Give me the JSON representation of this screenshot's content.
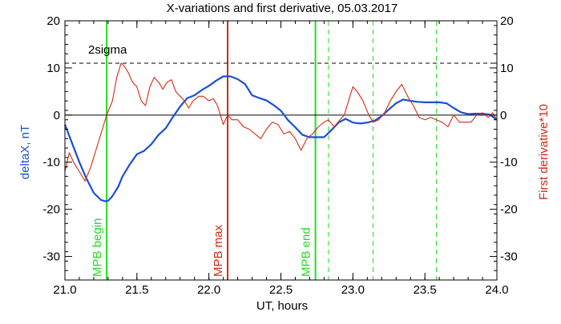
{
  "chart_data": {
    "type": "line",
    "title": "X-variations and first derivative, 05.03.2017",
    "xlabel": "UT, hours",
    "ylabel_left": "deltaX, nT",
    "ylabel_right": "First derivative*10",
    "xlim": [
      21.0,
      24.0
    ],
    "ylim": [
      -35,
      20
    ],
    "x_ticks": [
      21.0,
      21.5,
      22.0,
      22.5,
      23.0,
      23.5,
      24.0
    ],
    "x_tick_labels": [
      "21.0",
      "21.5",
      "22.0",
      "22.5",
      "23.0",
      "23.5",
      "24.0"
    ],
    "y_ticks": [
      -30,
      -20,
      -10,
      0,
      10,
      20
    ],
    "y_tick_labels": [
      "-30",
      "-20",
      "-10",
      "0",
      "10",
      "20"
    ],
    "colors": {
      "deltaX": "#1a4fd8",
      "derivative": "#d42a14",
      "mpb_begin": "#22dd22",
      "mpb_max": "#d42a14",
      "mpb_end": "#22dd22",
      "dashed_markers": "#22dd22",
      "reference": "#000000"
    },
    "reference_lines": [
      {
        "label": "2sigma",
        "y": 11,
        "style": "dashed"
      },
      {
        "label": "",
        "y": 0,
        "style": "solid"
      }
    ],
    "vertical_markers": [
      {
        "label": "MPB begin",
        "x": 21.29,
        "color": "#22dd22",
        "style": "solid"
      },
      {
        "label": "MPB max",
        "x": 22.13,
        "color": "#d42a14",
        "style": "solid"
      },
      {
        "label": "MPB end",
        "x": 22.74,
        "color": "#22dd22",
        "style": "solid"
      },
      {
        "label": "",
        "x": 22.83,
        "color": "#22dd22",
        "style": "dashed"
      },
      {
        "label": "",
        "x": 23.14,
        "color": "#22dd22",
        "style": "dashed"
      },
      {
        "label": "",
        "x": 23.58,
        "color": "#22dd22",
        "style": "dashed"
      }
    ],
    "series": [
      {
        "id": "deltaX",
        "axis": "left",
        "color": "#1a4fd8",
        "x": [
          21.0,
          21.05,
          21.1,
          21.15,
          21.2,
          21.25,
          21.28,
          21.3,
          21.33,
          21.37,
          21.4,
          21.45,
          21.5,
          21.55,
          21.6,
          21.65,
          21.7,
          21.75,
          21.8,
          21.85,
          21.9,
          21.95,
          22.0,
          22.05,
          22.1,
          22.15,
          22.2,
          22.25,
          22.3,
          22.35,
          22.4,
          22.45,
          22.5,
          22.55,
          22.6,
          22.65,
          22.7,
          22.75,
          22.8,
          22.85,
          22.9,
          22.95,
          23.0,
          23.05,
          23.1,
          23.15,
          23.2,
          23.25,
          23.3,
          23.35,
          23.4,
          23.45,
          23.5,
          23.55,
          23.6,
          23.65,
          23.7,
          23.75,
          23.8,
          23.85,
          23.9,
          23.95,
          24.0
        ],
        "y": [
          -2,
          -6,
          -10,
          -13.5,
          -16.5,
          -18,
          -18.3,
          -18.2,
          -17.2,
          -15.2,
          -13,
          -10.5,
          -8.3,
          -7.6,
          -6.2,
          -4.2,
          -2.8,
          -0.4,
          1.8,
          3.6,
          4.2,
          5.3,
          6.2,
          7.3,
          8.2,
          8.2,
          7.6,
          6.6,
          4.2,
          3.6,
          3.1,
          2.1,
          0.9,
          -1.1,
          -2.6,
          -4.2,
          -4.7,
          -4.7,
          -4.7,
          -3.2,
          -1.6,
          -0.8,
          -1.6,
          -1.8,
          -1.6,
          -1.2,
          -0.2,
          1.2,
          2.5,
          3.3,
          3.0,
          2.8,
          2.7,
          2.7,
          2.7,
          2.5,
          1.5,
          0.6,
          0.2,
          0.3,
          0.3,
          0.1,
          -1.0
        ]
      },
      {
        "id": "derivative",
        "axis": "right",
        "color": "#d42a14",
        "x": [
          21.0,
          21.03,
          21.06,
          21.1,
          21.14,
          21.18,
          21.22,
          21.26,
          21.29,
          21.33,
          21.36,
          21.39,
          21.41,
          21.44,
          21.47,
          21.5,
          21.53,
          21.56,
          21.59,
          21.62,
          21.65,
          21.68,
          21.71,
          21.74,
          21.77,
          21.8,
          21.83,
          21.86,
          21.89,
          21.93,
          21.96,
          22.0,
          22.03,
          22.06,
          22.1,
          22.13,
          22.16,
          22.2,
          22.24,
          22.28,
          22.32,
          22.36,
          22.4,
          22.44,
          22.48,
          22.52,
          22.56,
          22.6,
          22.64,
          22.68,
          22.72,
          22.76,
          22.8,
          22.83,
          22.87,
          22.91,
          22.94,
          22.97,
          23.0,
          23.03,
          23.07,
          23.11,
          23.14,
          23.18,
          23.22,
          23.26,
          23.3,
          23.34,
          23.38,
          23.42,
          23.46,
          23.5,
          23.54,
          23.58,
          23.62,
          23.66,
          23.7,
          23.74,
          23.78,
          23.82,
          23.86,
          23.9,
          23.94,
          23.97,
          24.0
        ],
        "y": [
          -12,
          -8,
          -10,
          -12,
          -14,
          -11,
          -7,
          -3,
          0,
          3,
          8,
          11,
          10.5,
          9,
          7,
          6,
          3,
          2,
          6,
          8,
          7,
          5.5,
          7,
          7.5,
          5,
          4,
          3,
          1.5,
          3,
          4,
          4,
          3,
          3.5,
          2,
          -2,
          0,
          -1,
          -1,
          -2.5,
          -3,
          -4,
          -5,
          -3,
          -1.5,
          -2,
          -4,
          -3.5,
          -5,
          -7.5,
          -5,
          -4,
          -2.5,
          -1.5,
          -1,
          -2.5,
          -1,
          0,
          3,
          6,
          5,
          3,
          0,
          -1.5,
          -1,
          0.5,
          3,
          5,
          6.5,
          4,
          2,
          -0.5,
          -1,
          -0.5,
          -1,
          -1.5,
          -2.5,
          0,
          -1.5,
          -1.5,
          -1.5,
          0,
          0.5,
          -0.5,
          0.5,
          -1
        ]
      }
    ]
  }
}
